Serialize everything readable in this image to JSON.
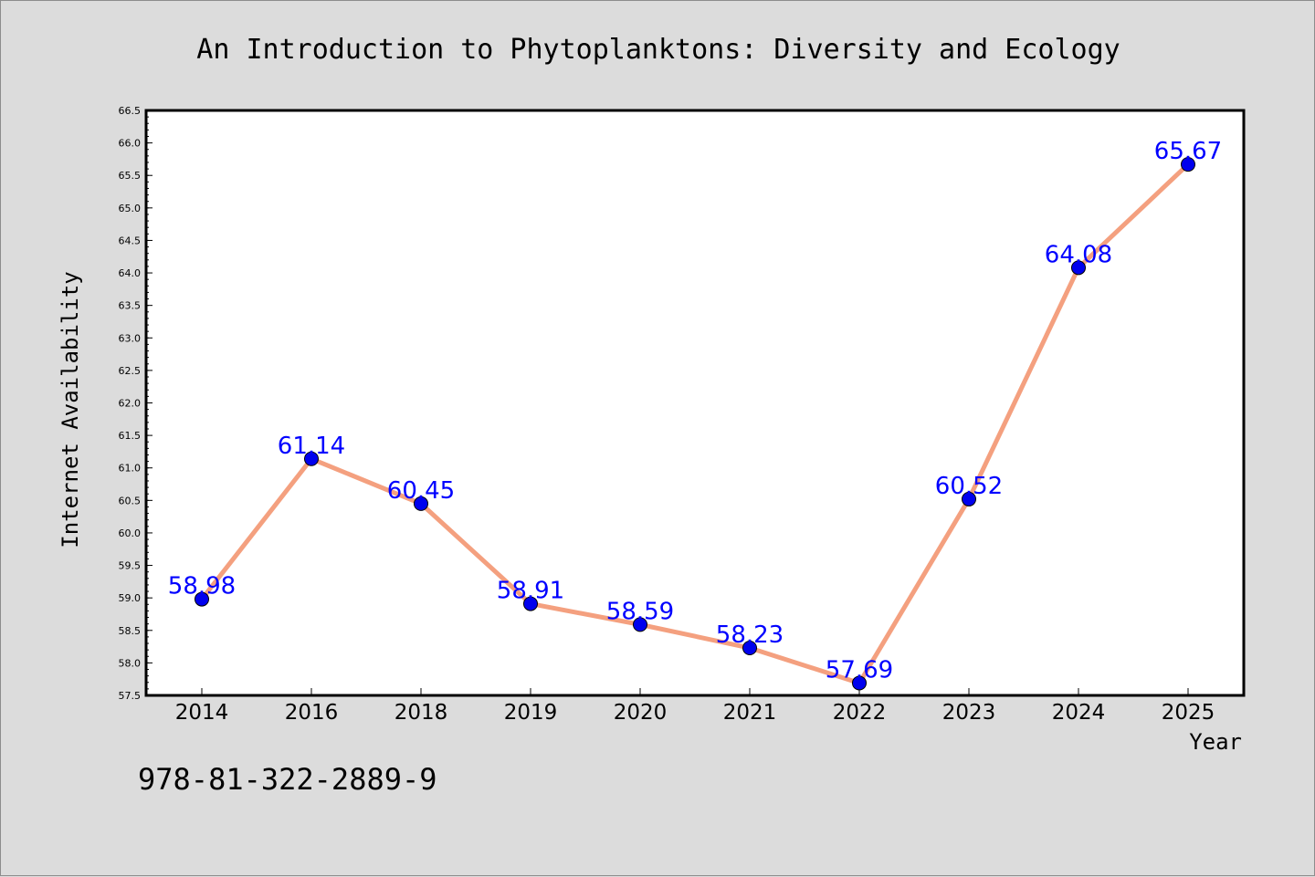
{
  "colors": {
    "background": "#dcdcdc",
    "plot_background": "#ffffff",
    "line": "#f4a07f",
    "marker": "#0000ee",
    "data_label": "#0000ff"
  },
  "footer_text": "978-81-322-2889-9",
  "chart_data": {
    "type": "line",
    "title": "An Introduction to Phytoplanktons: Diversity and Ecology",
    "xlabel": "Year",
    "ylabel": "Internet Availability",
    "categories": [
      "2014",
      "2016",
      "2018",
      "2019",
      "2020",
      "2021",
      "2022",
      "2023",
      "2024",
      "2025"
    ],
    "series": [
      {
        "values": [
          58.98,
          61.14,
          60.45,
          58.91,
          58.59,
          58.23,
          57.69,
          60.52,
          64.08,
          65.67
        ]
      }
    ],
    "data_labels": [
      "58.98",
      "61.14",
      "60.45",
      "58.91",
      "58.59",
      "58.23",
      "57.69",
      "60.52",
      "64.08",
      "65.67"
    ],
    "ylim": [
      57.5,
      66.5
    ],
    "yticks": [
      "57.5",
      "58.0",
      "58.5",
      "59.0",
      "59.5",
      "60.0",
      "60.5",
      "61.0",
      "61.5",
      "62.0",
      "62.5",
      "63.0",
      "63.5",
      "64.0",
      "64.5",
      "65.0",
      "65.5",
      "66.0",
      "66.5"
    ],
    "grid": false,
    "legend": "none"
  }
}
